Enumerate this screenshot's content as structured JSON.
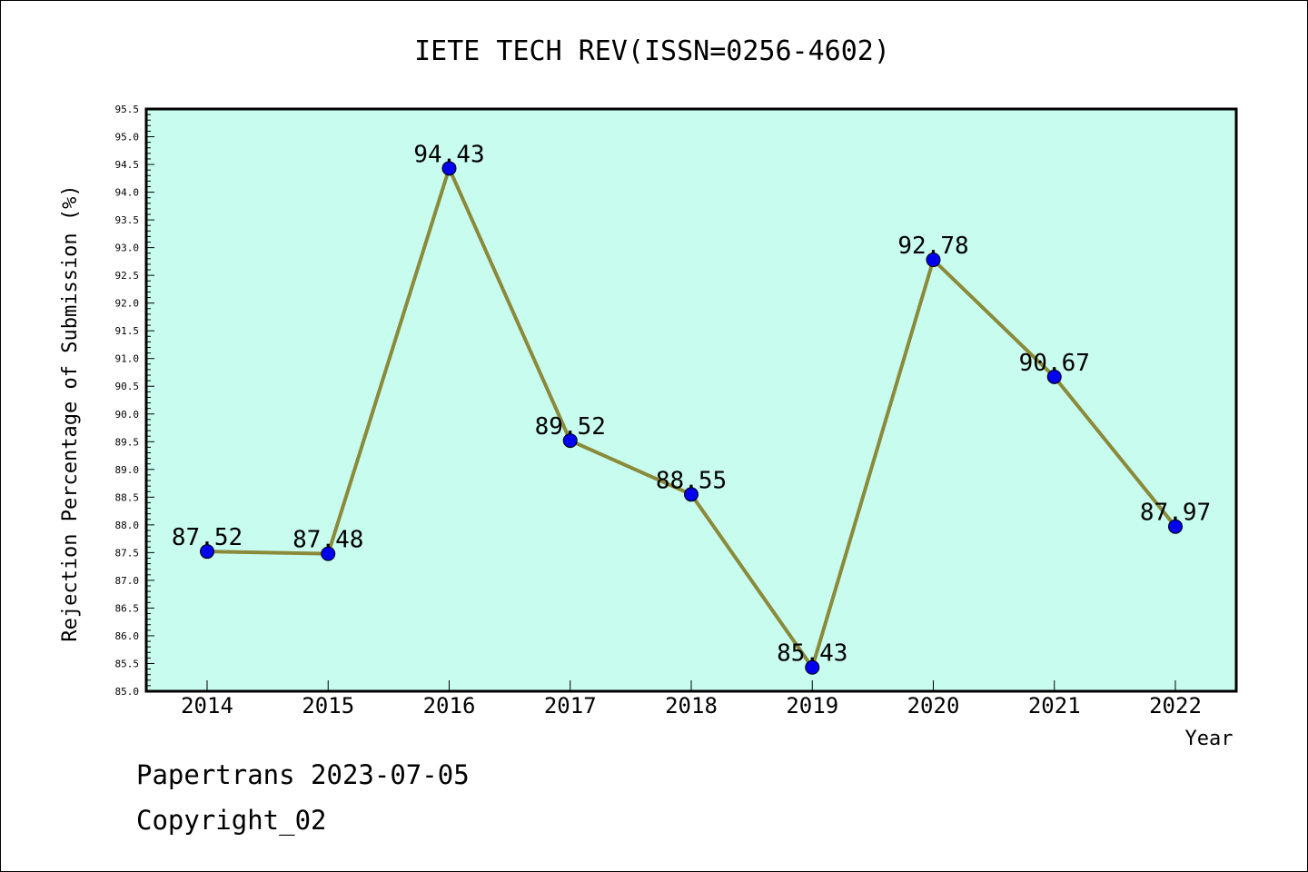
{
  "chart_data": {
    "type": "line",
    "title": "IETE TECH REV(ISSN=0256-4602)",
    "xlabel": "Year",
    "ylabel": "Rejection Percentage of Submission (%)",
    "categories": [
      "2014",
      "2015",
      "2016",
      "2017",
      "2018",
      "2019",
      "2020",
      "2021",
      "2022"
    ],
    "series": [
      {
        "values": [
          87.52,
          87.48,
          94.43,
          89.52,
          88.55,
          85.43,
          92.78,
          90.67,
          87.97
        ]
      }
    ],
    "data_labels": [
      "87.52",
      "87.48",
      "94.43",
      "89.52",
      "88.55",
      "85.43",
      "92.78",
      "90.67",
      "87.97"
    ],
    "ylim": [
      85.0,
      95.5
    ],
    "yticks": [
      "85.0",
      "85.5",
      "86.0",
      "86.5",
      "87.0",
      "87.5",
      "88.0",
      "88.5",
      "89.0",
      "89.5",
      "90.0",
      "90.5",
      "91.0",
      "91.5",
      "92.0",
      "92.5",
      "93.0",
      "93.5",
      "94.0",
      "94.5",
      "95.0",
      "95.5"
    ],
    "grid": false,
    "colors": {
      "plot_background": "#c8fcee",
      "line": "#8a8a3a",
      "marker": "#0000ee",
      "axis": "#000000"
    }
  },
  "footer": {
    "line1": "Papertrans 2023-07-05",
    "line2": "Copyright_02"
  }
}
